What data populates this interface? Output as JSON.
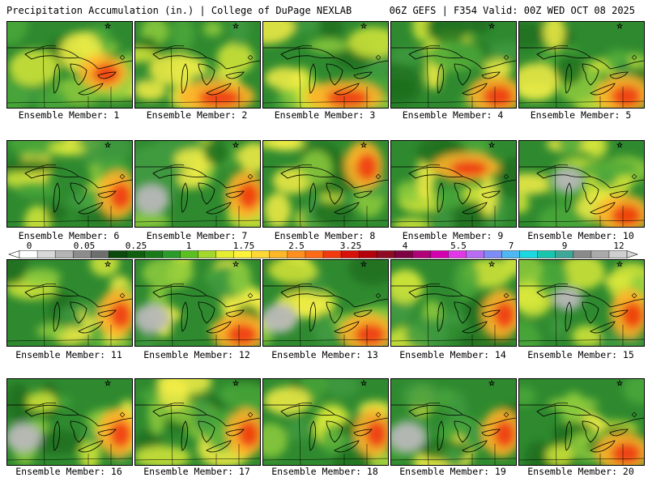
{
  "header": {
    "left": "Precipitation Accumulation (in.) | College of DuPage NEXLAB",
    "right": "06Z GEFS | F354 Valid: 00Z WED OCT 08 2025"
  },
  "colorbar": {
    "colors": [
      "#ffffff",
      "#d8d8d8",
      "#b4b4b4",
      "#8c8c8c",
      "#6e6e6e",
      "#0a4a0a",
      "#0f5f0f",
      "#1a7a1a",
      "#2a9a2a",
      "#5ac020",
      "#a2d82a",
      "#e6ec30",
      "#fff23a",
      "#ffd835",
      "#ffb728",
      "#ff8f1e",
      "#ff6a14",
      "#f23a0e",
      "#d8100a",
      "#b4000a",
      "#8e0a22",
      "#7c0042",
      "#b00078",
      "#d400b0",
      "#e236e8",
      "#b86cf4",
      "#7e8cf8",
      "#4cb8f4",
      "#1cd8e0",
      "#18c6b0",
      "#3ea898",
      "#8a8a8a",
      "#aaaaaa",
      "#cfcfcf"
    ],
    "tick_labels": [
      "0",
      "0.05",
      "0.25",
      "1",
      "1.75",
      "2.5",
      "3.25",
      "4",
      "5.5",
      "7",
      "9",
      "12"
    ]
  },
  "members": [
    {
      "label": "Ensemble Member: 1",
      "hot": "east-lake-erie",
      "gray": "none"
    },
    {
      "label": "Ensemble Member: 2",
      "hot": "south-ohio-valley",
      "gray": "none"
    },
    {
      "label": "Ensemble Member: 3",
      "hot": "south-ohio-valley",
      "gray": "none"
    },
    {
      "label": "Ensemble Member: 4",
      "hot": "south-east",
      "gray": "none"
    },
    {
      "label": "Ensemble Member: 5",
      "hot": "south-east",
      "gray": "none"
    },
    {
      "label": "Ensemble Member: 6",
      "hot": "east",
      "gray": "none"
    },
    {
      "label": "Ensemble Member: 7",
      "hot": "east",
      "gray": "west"
    },
    {
      "label": "Ensemble Member: 8",
      "hot": "north-east",
      "gray": "none"
    },
    {
      "label": "Ensemble Member: 9",
      "hot": "north-center",
      "gray": "none"
    },
    {
      "label": "Ensemble Member: 10",
      "hot": "south-east",
      "gray": "center"
    },
    {
      "label": "Ensemble Member: 11",
      "hot": "east",
      "gray": "none"
    },
    {
      "label": "Ensemble Member: 12",
      "hot": "south-east",
      "gray": "west"
    },
    {
      "label": "Ensemble Member: 13",
      "hot": "south-east",
      "gray": "west"
    },
    {
      "label": "Ensemble Member: 14",
      "hot": "east",
      "gray": "none"
    },
    {
      "label": "Ensemble Member: 15",
      "hot": "east",
      "gray": "center"
    },
    {
      "label": "Ensemble Member: 16",
      "hot": "east",
      "gray": "west"
    },
    {
      "label": "Ensemble Member: 17",
      "hot": "east",
      "gray": "none"
    },
    {
      "label": "Ensemble Member: 18",
      "hot": "east",
      "gray": "none"
    },
    {
      "label": "Ensemble Member: 19",
      "hot": "east",
      "gray": "west"
    },
    {
      "label": "Ensemble Member: 20",
      "hot": "south-east",
      "gray": "none"
    }
  ]
}
